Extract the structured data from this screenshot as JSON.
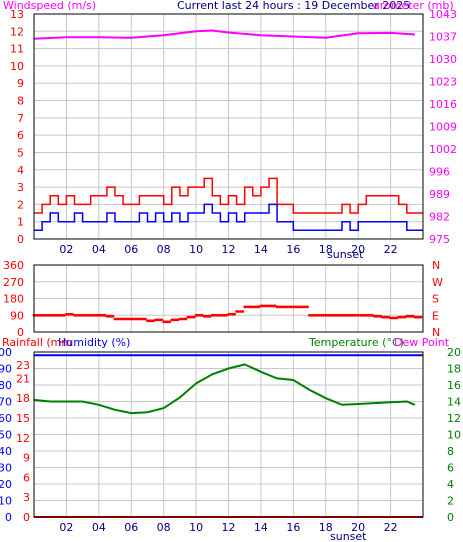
{
  "header": {
    "left_title": "Windspeed (m/s)",
    "center_title": "Current last 24 hours : 19 December 2025",
    "right_title": "arometer (mb)"
  },
  "colors": {
    "frame": "#000000",
    "grid": "#c8c8c8",
    "wind_avg": "#0000ff",
    "wind_gust": "#ff0000",
    "pressure": "#ff00ff",
    "direction": "#ff0000",
    "humidity": "#0000ff",
    "temperature": "#008000",
    "rain": "#ff0000"
  },
  "chart_data": [
    {
      "id": "wind-pressure",
      "type": "line",
      "x_ticks": [
        "02",
        "04",
        "06",
        "08",
        "10",
        "12",
        "14",
        "16",
        "18",
        "20",
        "22"
      ],
      "x_marker": "sunset",
      "y_left": {
        "label": "Windspeed (m/s)",
        "range": [
          0,
          13
        ],
        "ticks": [
          "0",
          "1",
          "2",
          "3",
          "4",
          "5",
          "6",
          "7",
          "8",
          "9",
          "10",
          "11",
          "12",
          "13"
        ]
      },
      "y_right": {
        "label": "arometer (mb)",
        "range": [
          975,
          1043
        ],
        "ticks": [
          "975",
          "982",
          "989",
          "996",
          "1002",
          "1009",
          "1016",
          "1023",
          "1030",
          "1037",
          "1043"
        ]
      },
      "grid": true,
      "series": [
        {
          "name": "Windspeed",
          "axis": "left",
          "role": "average",
          "x": [
            0,
            0.5,
            1,
            1.5,
            2,
            2.5,
            3,
            3.5,
            4,
            4.5,
            5,
            5.5,
            6,
            6.5,
            7,
            7.5,
            8,
            8.5,
            9,
            9.5,
            10,
            10.5,
            11,
            11.5,
            12,
            12.5,
            13,
            13.5,
            14,
            14.5,
            15,
            15.5,
            16,
            16.5,
            17,
            17.5,
            18,
            18.5,
            19,
            19.5,
            20,
            20.5,
            21,
            21.5,
            22,
            22.5,
            23,
            23.5
          ],
          "values": [
            0.5,
            1,
            1.5,
            1,
            1,
            1.5,
            1,
            1,
            1,
            1.5,
            1,
            1,
            1,
            1.5,
            1,
            1.5,
            1,
            1.5,
            1,
            1.5,
            1.5,
            2,
            1.5,
            1,
            1.5,
            1,
            1.5,
            1.5,
            1.5,
            2,
            1,
            1,
            0.5,
            0.5,
            0.5,
            0.5,
            0.5,
            0.5,
            1,
            0.5,
            1,
            1,
            1,
            1,
            1,
            1,
            0.5,
            0.5
          ]
        },
        {
          "name": "Windspeed",
          "axis": "left",
          "role": "gust",
          "x": [
            0,
            0.5,
            1,
            1.5,
            2,
            2.5,
            3,
            3.5,
            4,
            4.5,
            5,
            5.5,
            6,
            6.5,
            7,
            7.5,
            8,
            8.5,
            9,
            9.5,
            10,
            10.5,
            11,
            11.5,
            12,
            12.5,
            13,
            13.5,
            14,
            14.5,
            15,
            15.5,
            16,
            16.5,
            17,
            17.5,
            18,
            18.5,
            19,
            19.5,
            20,
            20.5,
            21,
            21.5,
            22,
            22.5,
            23,
            23.5
          ],
          "values": [
            1.5,
            2,
            2.5,
            2,
            2.5,
            2,
            2,
            2.5,
            2.5,
            3,
            2.5,
            2,
            2,
            2.5,
            2.5,
            2.5,
            2,
            3,
            2.5,
            3,
            3,
            3.5,
            2.5,
            2,
            2.5,
            2,
            3,
            2.5,
            3,
            3.5,
            2,
            2,
            1.5,
            1.5,
            1.5,
            1.5,
            1.5,
            1.5,
            2,
            1.5,
            2,
            2.5,
            2.5,
            2.5,
            2.5,
            2,
            1.5,
            1.5
          ]
        },
        {
          "name": "Barometer",
          "axis": "right",
          "x": [
            0,
            2,
            4,
            6,
            8,
            10,
            11,
            12,
            14,
            16,
            18,
            20,
            22,
            23.5
          ],
          "values": [
            1035.5,
            1036,
            1036,
            1035.8,
            1036.6,
            1037.8,
            1038,
            1037.4,
            1036.6,
            1036.2,
            1035.8,
            1037.2,
            1037.3,
            1036.8
          ]
        }
      ]
    },
    {
      "id": "wind-direction",
      "type": "scatter",
      "x_ticks": [],
      "y_left": {
        "range": [
          0,
          360
        ],
        "ticks": [
          "0",
          "90",
          "180",
          "270",
          "360"
        ]
      },
      "y_right": {
        "ticks": [
          "N",
          "E",
          "S",
          "W",
          "N"
        ]
      },
      "grid": true,
      "series": [
        {
          "name": "Wind direction",
          "x": [
            0,
            0.5,
            1,
            1.5,
            2,
            2.5,
            3,
            3.5,
            4,
            4.5,
            5,
            5.5,
            6,
            6.5,
            7,
            7.5,
            8,
            8.5,
            9,
            9.5,
            10,
            10.5,
            11,
            11.5,
            12,
            12.5,
            13,
            13.5,
            14,
            14.5,
            15,
            15.5,
            16,
            16.5,
            17,
            17.5,
            18,
            18.5,
            19,
            19.5,
            20,
            20.5,
            21,
            21.5,
            22,
            22.5,
            23,
            23.5
          ],
          "values": [
            90,
            90,
            90,
            90,
            95,
            90,
            90,
            90,
            90,
            85,
            70,
            70,
            70,
            70,
            60,
            65,
            55,
            65,
            70,
            80,
            90,
            85,
            90,
            90,
            95,
            110,
            135,
            135,
            140,
            140,
            135,
            135,
            135,
            135,
            90,
            90,
            90,
            90,
            90,
            90,
            90,
            90,
            85,
            80,
            75,
            80,
            85,
            80
          ]
        }
      ]
    },
    {
      "id": "humidity-temperature-rain",
      "type": "line",
      "labels": {
        "rainfall": "Rainfall (mm",
        "humidity": "Humidity (%)",
        "temperature": "Temperature (°C)",
        "dew_point": "Dew Point"
      },
      "x_ticks": [
        "02",
        "04",
        "06",
        "08",
        "10",
        "12",
        "14",
        "16",
        "18",
        "20",
        "22"
      ],
      "x_marker": "sunset",
      "y_left_inner": {
        "label": "Rainfall (mm",
        "range": [
          0,
          25
        ],
        "ticks": [
          "0",
          "3",
          "6",
          "9",
          "12",
          "15",
          "18",
          "21",
          "23"
        ]
      },
      "y_left_outer": {
        "label": "Humidity (%)",
        "range": [
          0,
          100
        ],
        "ticks": [
          "0",
          "10",
          "20",
          "30",
          "40",
          "50",
          "60",
          "70",
          "80",
          "90",
          "100"
        ]
      },
      "y_right": {
        "label": "Temperature (°C)",
        "range": [
          0,
          20
        ],
        "ticks": [
          "0",
          "2",
          "4",
          "6",
          "8",
          "10",
          "12",
          "14",
          "16",
          "18",
          "20"
        ]
      },
      "grid": true,
      "series": [
        {
          "name": "Humidity",
          "axis": "left_outer",
          "x": [
            0,
            24
          ],
          "values": [
            98,
            98
          ]
        },
        {
          "name": "Rainfall",
          "axis": "left_inner",
          "x": [
            0,
            24
          ],
          "values": [
            0,
            0
          ]
        },
        {
          "name": "Temperature",
          "axis": "right",
          "x": [
            0,
            1,
            2,
            3,
            4,
            5,
            6,
            7,
            8,
            9,
            10,
            11,
            12,
            13,
            14,
            15,
            16,
            17,
            18,
            19,
            20,
            21,
            22,
            23,
            23.5
          ],
          "values": [
            14.2,
            14,
            14,
            14,
            13.6,
            13,
            12.6,
            12.7,
            13.2,
            14.5,
            16.2,
            17.3,
            18,
            18.5,
            17.6,
            16.8,
            16.6,
            15.4,
            14.4,
            13.6,
            13.7,
            13.8,
            13.9,
            14,
            13.6
          ]
        }
      ]
    }
  ]
}
